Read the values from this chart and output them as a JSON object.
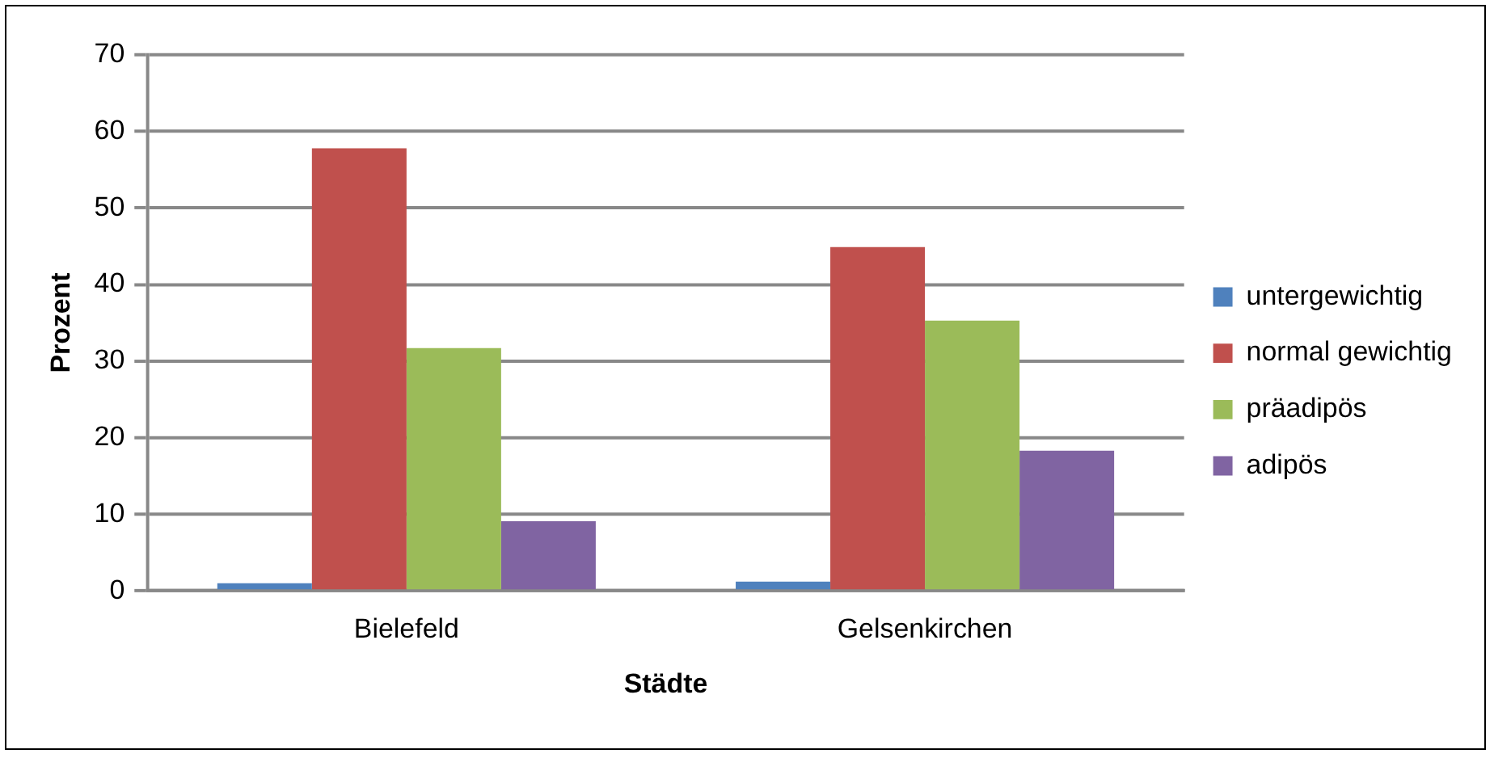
{
  "chart_data": {
    "type": "bar",
    "xlabel": "Städte",
    "ylabel": "Prozent",
    "categories": [
      "Bielefeld",
      "Gelsenkirchen"
    ],
    "series": [
      {
        "name": "untergewichtig",
        "color": "#4f81bd",
        "values": [
          1.0,
          1.2
        ]
      },
      {
        "name": "normal gewichtig",
        "color": "#c0504d",
        "values": [
          57.8,
          44.9
        ]
      },
      {
        "name": "präadipös",
        "color": "#9bbb59",
        "values": [
          31.7,
          35.3
        ]
      },
      {
        "name": "adipös",
        "color": "#8064a2",
        "values": [
          9.1,
          18.3
        ]
      }
    ],
    "ylim": [
      0,
      70
    ],
    "yticks": [
      0,
      10,
      20,
      30,
      40,
      50,
      60,
      70
    ],
    "grid": "y",
    "legend": "right"
  }
}
